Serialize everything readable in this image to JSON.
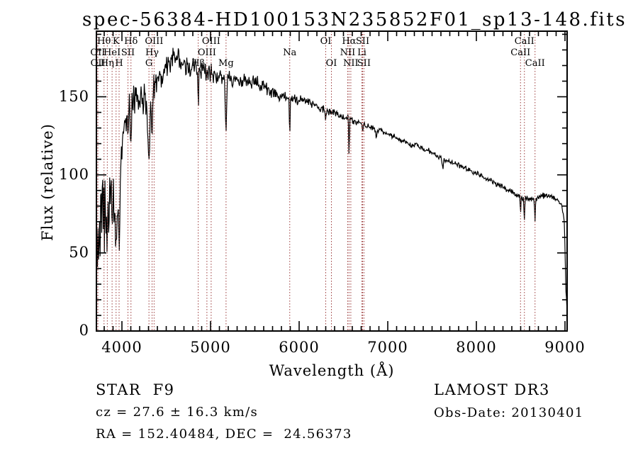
{
  "chart_data": {
    "type": "line",
    "title": "spec-56384-HD100153N235852F01_sp13-148.fits",
    "xlabel": "Wavelength (Å)",
    "ylabel": "Flux (relative)",
    "xlim": [
      3712,
      9024
    ],
    "ylim": [
      0,
      192
    ],
    "xticks": [
      4000,
      5000,
      6000,
      7000,
      8000,
      9000
    ],
    "yticks": [
      0,
      50,
      100,
      150
    ],
    "xtick_minor_step": 100,
    "ytick_minor_step": 10,
    "grid": false,
    "legend": "none",
    "line_color": "#000000",
    "marker_line_color": "#9b3a3a",
    "noise_seed": 20130401,
    "sample_step": 6,
    "continuum": [
      [
        3712,
        62
      ],
      [
        3740,
        78
      ],
      [
        3780,
        85
      ],
      [
        3830,
        82
      ],
      [
        3880,
        88
      ],
      [
        3940,
        92
      ],
      [
        3980,
        100
      ],
      [
        4010,
        125
      ],
      [
        4060,
        140
      ],
      [
        4150,
        150
      ],
      [
        4220,
        150
      ],
      [
        4280,
        148
      ],
      [
        4400,
        160
      ],
      [
        4500,
        170
      ],
      [
        4600,
        174
      ],
      [
        4700,
        171
      ],
      [
        4800,
        168
      ],
      [
        4900,
        167
      ],
      [
        5000,
        165
      ],
      [
        5100,
        163
      ],
      [
        5300,
        160
      ],
      [
        5500,
        159
      ],
      [
        5650,
        155
      ],
      [
        5800,
        150
      ],
      [
        5950,
        148
      ],
      [
        6100,
        147
      ],
      [
        6250,
        142
      ],
      [
        6400,
        139
      ],
      [
        6550,
        136
      ],
      [
        6700,
        133
      ],
      [
        6850,
        130
      ],
      [
        7000,
        126
      ],
      [
        7200,
        121
      ],
      [
        7400,
        117
      ],
      [
        7600,
        111
      ],
      [
        7800,
        106
      ],
      [
        8000,
        101
      ],
      [
        8200,
        95
      ],
      [
        8400,
        89
      ],
      [
        8520,
        85
      ],
      [
        8650,
        84
      ],
      [
        8750,
        87
      ],
      [
        8850,
        86
      ],
      [
        8920,
        84
      ],
      [
        8960,
        81
      ],
      [
        8990,
        72
      ],
      [
        9000,
        55
      ],
      [
        9008,
        28
      ],
      [
        9024,
        13
      ]
    ],
    "absorption_dips": [
      [
        3727,
        30,
        6
      ],
      [
        3798,
        22,
        5
      ],
      [
        3835,
        26,
        5
      ],
      [
        3889,
        22,
        5
      ],
      [
        3934,
        48,
        7
      ],
      [
        3968,
        42,
        7
      ],
      [
        4068,
        14,
        5
      ],
      [
        4102,
        28,
        6
      ],
      [
        4305,
        42,
        12
      ],
      [
        4340,
        30,
        6
      ],
      [
        4861,
        26,
        5
      ],
      [
        5175,
        36,
        7
      ],
      [
        5894,
        25,
        4
      ],
      [
        6300,
        5,
        4
      ],
      [
        6563,
        24,
        4
      ],
      [
        6716,
        4,
        4
      ],
      [
        6870,
        5,
        6
      ],
      [
        7620,
        6,
        8
      ],
      [
        8498,
        9,
        4
      ],
      [
        8542,
        15,
        4
      ],
      [
        8662,
        12,
        4
      ]
    ],
    "noise_profile": [
      [
        3712,
        34
      ],
      [
        3850,
        32
      ],
      [
        3950,
        26
      ],
      [
        4000,
        16
      ],
      [
        4100,
        13
      ],
      [
        4300,
        12
      ],
      [
        4500,
        10
      ],
      [
        4800,
        9
      ],
      [
        5000,
        7
      ],
      [
        5300,
        6
      ],
      [
        5600,
        5
      ],
      [
        6000,
        4
      ],
      [
        6500,
        3
      ],
      [
        7000,
        2.5
      ],
      [
        7600,
        2
      ],
      [
        8300,
        2
      ],
      [
        8700,
        2.5
      ],
      [
        9024,
        1.5
      ]
    ],
    "spectral_lines": [
      {
        "wavelength": 3727,
        "label": "OII",
        "row": 2
      },
      {
        "wavelength": 3729,
        "label": "OII",
        "row": 3
      },
      {
        "wavelength": 3798,
        "label": "Hθ",
        "row": 1
      },
      {
        "wavelength": 3835,
        "label": "Hη",
        "row": 3
      },
      {
        "wavelength": 3889,
        "label": "HeI",
        "row": 2
      },
      {
        "wavelength": 3934,
        "label": "K",
        "row": 1
      },
      {
        "wavelength": 3968,
        "label": "H",
        "row": 3
      },
      {
        "wavelength": 4068,
        "label": "SII",
        "row": 2
      },
      {
        "wavelength": 4102,
        "label": "Hδ",
        "row": 1
      },
      {
        "wavelength": 4305,
        "label": "G",
        "row": 3
      },
      {
        "wavelength": 4340,
        "label": "Hγ",
        "row": 2
      },
      {
        "wavelength": 4363,
        "label": "OIII",
        "row": 1
      },
      {
        "wavelength": 4861,
        "label": "Hβ",
        "row": 3
      },
      {
        "wavelength": 4959,
        "label": "OIII",
        "row": 2
      },
      {
        "wavelength": 5007,
        "label": "OIII",
        "row": 1
      },
      {
        "wavelength": 5175,
        "label": "Mg",
        "row": 3
      },
      {
        "wavelength": 5894,
        "label": "Na",
        "row": 2
      },
      {
        "wavelength": 6300,
        "label": "OI",
        "row": 1
      },
      {
        "wavelength": 6364,
        "label": "OI",
        "row": 3
      },
      {
        "wavelength": 6548,
        "label": "NII",
        "row": 2
      },
      {
        "wavelength": 6563,
        "label": "Hα",
        "row": 1
      },
      {
        "wavelength": 6583,
        "label": "NII",
        "row": 3
      },
      {
        "wavelength": 6708,
        "label": "Li",
        "row": 2
      },
      {
        "wavelength": 6716,
        "label": "SII",
        "row": 1
      },
      {
        "wavelength": 6731,
        "label": "SII",
        "row": 3
      },
      {
        "wavelength": 8498,
        "label": "CaII",
        "row": 2
      },
      {
        "wavelength": 8542,
        "label": "CaII",
        "row": 1
      },
      {
        "wavelength": 8662,
        "label": "CaII",
        "row": 3
      }
    ]
  },
  "annotations": {
    "class_label": "STAR  F9",
    "survey": "LAMOST DR3",
    "cz": "cz = 27.6 ± 16.3 km/s",
    "obs_date": "Obs-Date: 20130401",
    "radec": "RA = 152.40484, DEC =  24.56373"
  }
}
